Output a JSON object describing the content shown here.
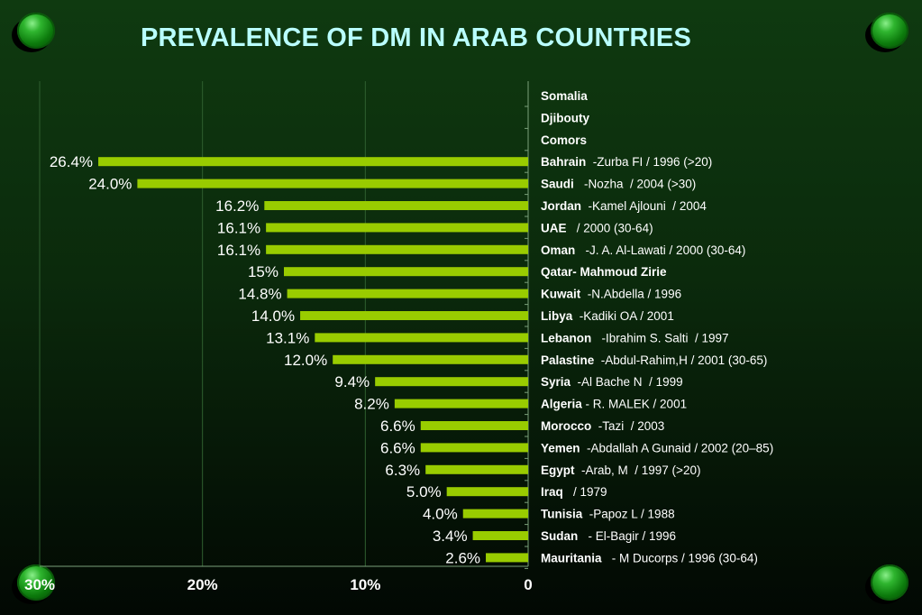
{
  "title": "PREVALENCE OF DM  IN ARAB COUNTRIES",
  "chart_data": {
    "type": "bar",
    "orientation": "horizontal",
    "xlim": [
      0,
      30
    ],
    "x_reversed": true,
    "x_ticks": [
      "30%",
      "20%",
      "10%",
      "0"
    ],
    "x_tick_values": [
      30,
      20,
      10,
      0
    ],
    "grid": true,
    "bar_color": "#99cc00",
    "label_color": "#ffffff",
    "categories": [
      "Somalia",
      "Djibouty",
      "Comors",
      "Bahrain",
      "Saudi",
      "Jordan",
      "UAE",
      "Oman",
      "Qatar",
      "Kuwait",
      "Libya",
      "Lebanon",
      "Palastine",
      "Syria",
      "Algeria",
      "Morocco",
      "Yemen",
      "Egypt",
      "Iraq",
      "Tunisia",
      "Sudan",
      "Mauritania"
    ],
    "values": [
      null,
      null,
      null,
      26.4,
      24.0,
      16.2,
      16.1,
      16.1,
      15,
      14.8,
      14.0,
      13.1,
      12.0,
      9.4,
      8.2,
      6.6,
      6.6,
      6.3,
      5.0,
      4.0,
      3.4,
      2.6
    ],
    "value_labels": [
      "",
      "",
      "",
      "26.4%",
      "24.0%",
      "16.2%",
      "16.1%",
      "16.1%",
      "15%",
      "14.8%",
      "14.0%",
      "13.1%",
      "12.0%",
      "9.4%",
      "8.2%",
      "6.6%",
      "6.6%",
      "6.3%",
      "5.0%",
      "4.0%",
      "3.4%",
      "2.6%"
    ],
    "row_labels": [
      {
        "country": "Somalia",
        "source": ""
      },
      {
        "country": "Djibouty",
        "source": ""
      },
      {
        "country": "Comors",
        "source": ""
      },
      {
        "country": "Bahrain",
        "source": "  -Zurba FI / 1996 (>20)"
      },
      {
        "country": "Saudi",
        "source": "   -Nozha  / 2004 (>30)"
      },
      {
        "country": "Jordan",
        "source": "  -Kamel Ajlouni  / 2004"
      },
      {
        "country": "UAE",
        "source": "   / 2000 (30-64)"
      },
      {
        "country": "Oman",
        "source": "   -J. A. Al-Lawati / 2000 (30-64)"
      },
      {
        "country": "Qatar- Mahmoud Zirie",
        "source": ""
      },
      {
        "country": "Kuwait",
        "source": "  -N.Abdella / 1996"
      },
      {
        "country": "Libya",
        "source": "  -Kadiki OA / 2001"
      },
      {
        "country": "Lebanon",
        "source": "   -Ibrahim S. Salti  / 1997"
      },
      {
        "country": "Palastine",
        "source": "  -Abdul-Rahim,H / 2001 (30-65)"
      },
      {
        "country": "Syria",
        "source": "  -Al Bache N  / 1999"
      },
      {
        "country": "Algeria",
        "source": " - R. MALEK / 2001"
      },
      {
        "country": "Morocco",
        "source": "  -Tazi  / 2003"
      },
      {
        "country": "Yemen",
        "source": "  -Abdallah A Gunaid / 2002 (20–85)"
      },
      {
        "country": "Egypt",
        "source": "  -Arab, M  / 1997 (>20)"
      },
      {
        "country": "Iraq",
        "source": "   / 1979"
      },
      {
        "country": "Tunisia",
        "source": "  -Papoz L / 1988"
      },
      {
        "country": "Sudan",
        "source": "   - El-Bagir / 1996"
      },
      {
        "country": "Mauritania",
        "source": "   - M Ducorps / 1996 (30-64)"
      }
    ]
  }
}
